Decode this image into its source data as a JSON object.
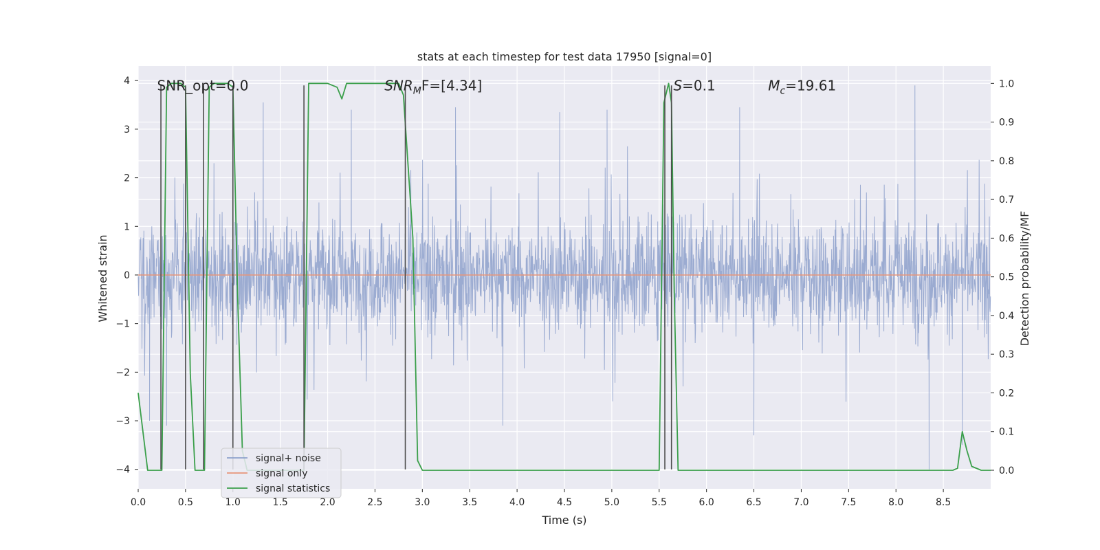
{
  "chart_data": {
    "type": "line",
    "title": "stats at each timestep for test data 17950 [signal=0]",
    "xlabel": "Time (s)",
    "ylabel": "Whitened strain",
    "ylabel_right": "Detection probability/MF",
    "xlim": [
      0.0,
      9.0
    ],
    "ylim": [
      -4.4,
      4.3
    ],
    "ylim_right": [
      -0.048,
      1.045
    ],
    "x_ticks": [
      0.0,
      0.5,
      1.0,
      1.5,
      2.0,
      2.5,
      3.0,
      3.5,
      4.0,
      4.5,
      5.0,
      5.5,
      6.0,
      6.5,
      7.0,
      7.5,
      8.0,
      8.5
    ],
    "x_tick_labels": [
      "0.0",
      "0.5",
      "1.0",
      "1.5",
      "2.0",
      "2.5",
      "3.0",
      "3.5",
      "4.0",
      "4.5",
      "5.0",
      "5.5",
      "6.0",
      "6.5",
      "7.0",
      "7.5",
      "8.0",
      "8.5"
    ],
    "y_ticks": [
      -4,
      -3,
      -2,
      -1,
      0,
      1,
      2,
      3,
      4
    ],
    "y_tick_labels": [
      "−4",
      "−3",
      "−2",
      "−1",
      "0",
      "1",
      "2",
      "3",
      "4"
    ],
    "y_right_ticks": [
      0.0,
      0.1,
      0.2,
      0.3,
      0.4,
      0.5,
      0.6,
      0.7,
      0.8,
      0.9,
      1.0
    ],
    "y_right_tick_labels": [
      "0.0",
      "0.1",
      "0.2",
      "0.3",
      "0.4",
      "0.5",
      "0.6",
      "0.7",
      "0.8",
      "0.9",
      "1.0"
    ],
    "grid": true,
    "legend_position": "lower-left",
    "annotations": [
      {
        "text": "SNR_opt=0.0",
        "x": 0.2,
        "y": 3.9,
        "style": "normal"
      },
      {
        "text": "SNR_MF=[4.34]",
        "x": 2.6,
        "y": 3.9,
        "style": "italic",
        "display_parts": [
          "SNR",
          "M",
          "F=[4.34]"
        ]
      },
      {
        "text": "S=0.1",
        "x": 5.65,
        "y": 3.9,
        "style": "italic",
        "display_parts": [
          "S",
          "",
          "=0.1"
        ]
      },
      {
        "text": "M_c=19.61",
        "x": 6.65,
        "y": 3.9,
        "style": "italic",
        "display_parts": [
          "M",
          "c",
          "=19.61"
        ]
      }
    ],
    "vlines": {
      "x": [
        0.24,
        0.5,
        0.69,
        1.0,
        1.75,
        2.82,
        5.56,
        5.63
      ],
      "ymin": -4.0,
      "ymax": 3.9,
      "color": "#4c4c4c"
    },
    "series": [
      {
        "name": "signal+ noise",
        "axis": "left",
        "color": "#8da0cb",
        "kind": "noise-envelope",
        "band_min": -2.1,
        "band_max": 2.2,
        "spike_min": -4.0,
        "spike_max": 3.9,
        "peaks": [
          {
            "x": 0.8,
            "y": 2.3
          },
          {
            "x": 1.32,
            "y": 3.55
          },
          {
            "x": 2.25,
            "y": 3.4
          },
          {
            "x": 3.35,
            "y": 3.45
          },
          {
            "x": 4.45,
            "y": 3.35
          },
          {
            "x": 4.95,
            "y": 3.4
          },
          {
            "x": 6.35,
            "y": 3.45
          },
          {
            "x": 8.2,
            "y": 3.9
          }
        ],
        "troughs": [
          {
            "x": 0.12,
            "y": -3.0
          },
          {
            "x": 0.3,
            "y": -3.1
          },
          {
            "x": 1.0,
            "y": -3.5
          },
          {
            "x": 3.85,
            "y": -3.1
          },
          {
            "x": 6.5,
            "y": -3.3
          },
          {
            "x": 8.35,
            "y": -4.0
          },
          {
            "x": 8.7,
            "y": -3.5
          }
        ]
      },
      {
        "name": "signal only",
        "axis": "left",
        "color": "#e8967a",
        "x": [
          0.0,
          9.0
        ],
        "y": [
          0.0,
          0.0
        ]
      },
      {
        "name": "signal statistics",
        "axis": "right",
        "color": "#3a9f4a",
        "x": [
          0.0,
          0.05,
          0.1,
          0.15,
          0.2,
          0.25,
          0.3,
          0.35,
          0.4,
          0.45,
          0.5,
          0.55,
          0.6,
          0.65,
          0.7,
          0.75,
          0.8,
          0.85,
          0.9,
          0.95,
          1.0,
          1.05,
          1.1,
          1.15,
          1.2,
          1.3,
          1.5,
          1.7,
          1.75,
          1.8,
          1.9,
          2.0,
          2.1,
          2.15,
          2.2,
          2.3,
          2.4,
          2.5,
          2.6,
          2.7,
          2.75,
          2.8,
          2.9,
          2.95,
          3.0,
          3.5,
          4.0,
          4.5,
          5.0,
          5.45,
          5.5,
          5.55,
          5.6,
          5.63,
          5.66,
          5.7,
          5.75,
          5.8,
          6.0,
          7.0,
          8.0,
          8.5,
          8.6,
          8.65,
          8.7,
          8.75,
          8.8,
          8.9,
          9.0
        ],
        "y": [
          0.2,
          0.1,
          0.0,
          0.0,
          0.0,
          0.0,
          0.99,
          1.0,
          1.0,
          1.0,
          0.99,
          0.25,
          0.0,
          0.0,
          0.0,
          0.99,
          1.0,
          1.0,
          1.0,
          1.0,
          0.99,
          0.45,
          0.05,
          0.0,
          0.0,
          0.0,
          0.0,
          0.0,
          0.0,
          1.0,
          1.0,
          1.0,
          0.99,
          0.96,
          1.0,
          1.0,
          1.0,
          1.0,
          1.0,
          1.0,
          1.0,
          0.97,
          0.6,
          0.025,
          0.0,
          0.0,
          0.0,
          0.0,
          0.0,
          0.0,
          0.0,
          0.95,
          1.0,
          0.95,
          0.45,
          0.0,
          0.0,
          0.0,
          0.0,
          0.0,
          0.0,
          0.0,
          0.0,
          0.005,
          0.1,
          0.05,
          0.01,
          0.0,
          0.0
        ]
      }
    ]
  }
}
